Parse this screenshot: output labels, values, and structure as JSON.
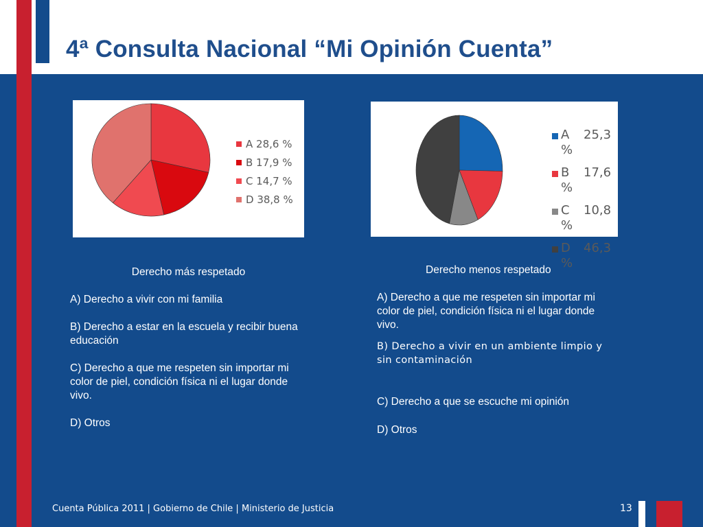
{
  "title": "4ª Consulta Nacional “Mi Opinión Cuenta”",
  "chart_data": [
    {
      "type": "pie",
      "title": "",
      "categories": [
        "A",
        "B",
        "C",
        "D"
      ],
      "values": [
        28.6,
        17.9,
        14.7,
        38.8
      ],
      "legend": [
        "A 28,6 %",
        "B 17,9 %",
        "C 14,7 %",
        "D 38,8 %"
      ],
      "colors": [
        "#e8373f",
        "#d9090f",
        "#f04a50",
        "#e0726d"
      ],
      "legend_position": "right"
    },
    {
      "type": "pie",
      "title": "",
      "categories": [
        "A",
        "B",
        "C",
        "D"
      ],
      "values": [
        25.3,
        17.6,
        10.8,
        46.3
      ],
      "legend": [
        {
          "letter": "A",
          "value": "25,3",
          "unit": "%"
        },
        {
          "letter": "B",
          "value": "17,6",
          "unit": "%"
        },
        {
          "letter": "C",
          "value": "10,8",
          "unit": "%"
        },
        {
          "letter": "D",
          "value": "46,3",
          "unit": "%"
        }
      ],
      "colors": [
        "#1566b4",
        "#e8373f",
        "#888888",
        "#404040"
      ],
      "legend_position": "right"
    }
  ],
  "left_column": {
    "heading": "Derecho más respetado",
    "items": [
      "A)  Derecho a vivir con mi familia",
      "B) Derecho a estar en la escuela y recibir buena educación",
      "C) Derecho a que me respeten sin importar mi color de piel, condición física ni el lugar donde vivo.",
      "D) Otros"
    ]
  },
  "right_column": {
    "heading": "Derecho menos respetado",
    "items": [
      "A) Derecho a que me respeten sin importar mi color de piel, condición física ni el lugar donde vivo.",
      "B) Derecho a vivir en un ambiente limpio y sin contaminación",
      "C) Derecho a que se escuche mi opinión",
      "D) Otros"
    ]
  },
  "footer": {
    "text": "Cuenta Pública 2011 | Gobierno de Chile | Ministerio  de Justicia",
    "page_number": "13"
  }
}
